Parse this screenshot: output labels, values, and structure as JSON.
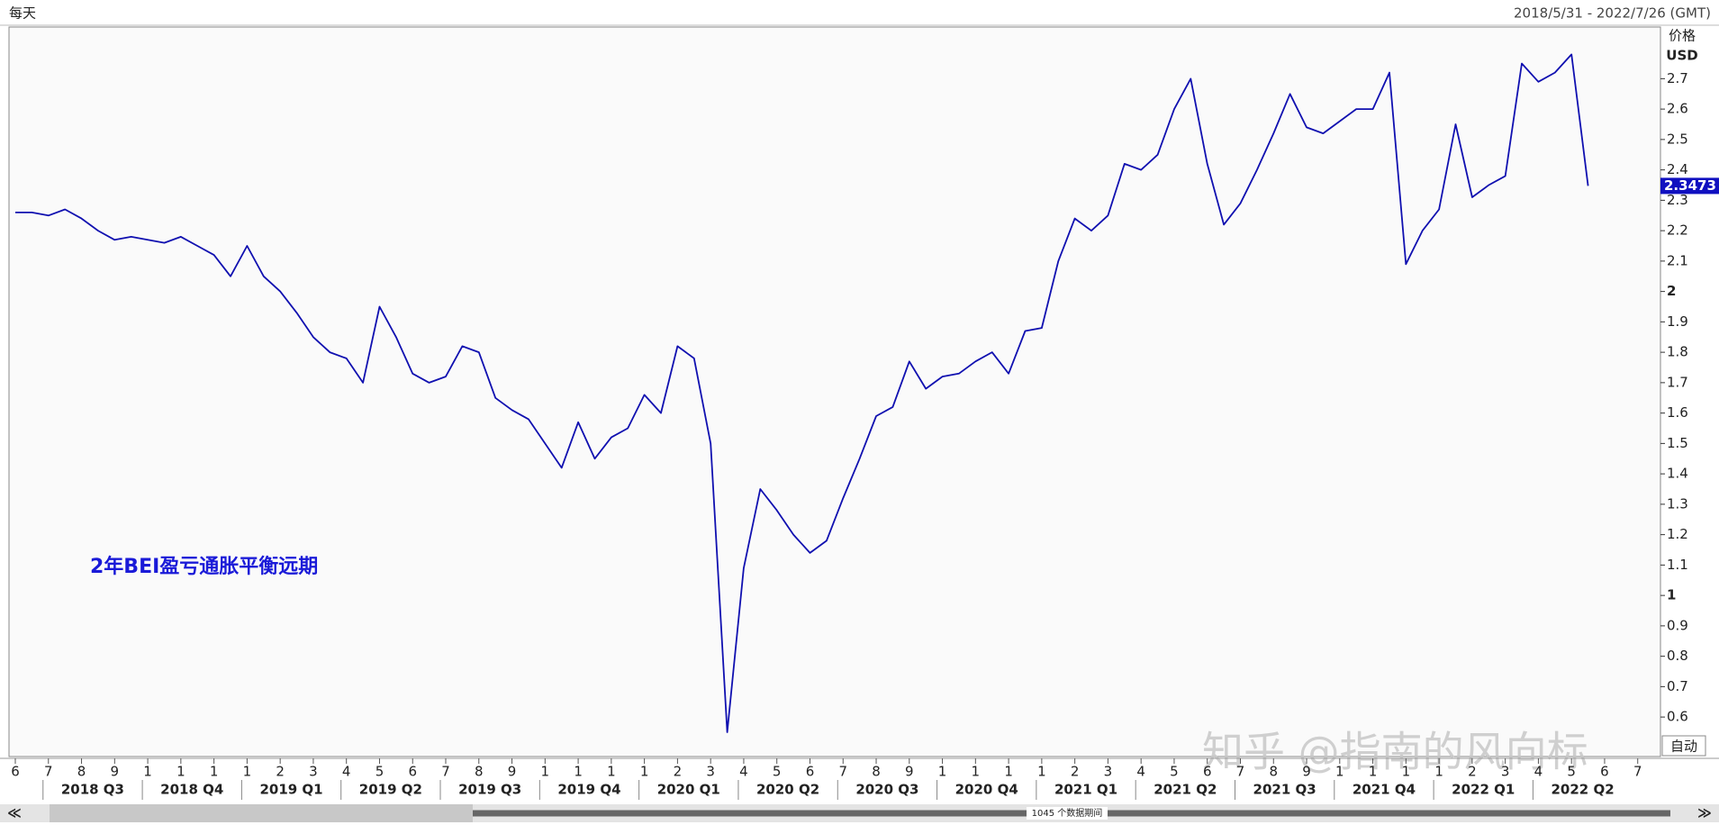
{
  "header": {
    "frequency": "每天",
    "range": "2018/5/31 - 2022/7/26 (GMT)"
  },
  "chart_data": {
    "type": "line",
    "annotation": "2年BEI盈亏通胀平衡远期",
    "y_axis_title": "价格",
    "y_axis_unit": "USD",
    "color": "#1010b0",
    "categories": [
      "6",
      null,
      "7",
      null,
      "8",
      null,
      "9",
      null,
      "1",
      null,
      "1",
      null,
      "1",
      null,
      "1",
      null,
      "2",
      null,
      "3",
      null,
      "4",
      null,
      "5",
      null,
      "6",
      null,
      "7",
      null,
      "8",
      null,
      "9",
      null,
      "1",
      null,
      "1",
      null,
      "1",
      null,
      "1",
      null,
      "2",
      null,
      "3",
      null,
      "4",
      null,
      "5",
      null,
      "6",
      null,
      "7",
      null,
      "8",
      null,
      "9",
      null,
      "1",
      null,
      "1",
      null,
      "1",
      null,
      "1",
      null,
      "2",
      null,
      "3",
      null,
      "4",
      null,
      "5",
      null,
      "6",
      null,
      "7",
      null,
      "8",
      null,
      "9",
      null,
      "1",
      null,
      "1",
      null,
      "1",
      null,
      "1",
      null,
      "2",
      null,
      "3",
      null,
      "4",
      null,
      "5",
      null,
      "6",
      null,
      "7"
    ],
    "values": [
      2.26,
      2.26,
      2.25,
      2.27,
      2.24,
      2.2,
      2.17,
      2.18,
      2.17,
      2.16,
      2.18,
      2.15,
      2.12,
      2.05,
      2.15,
      2.05,
      2.0,
      1.93,
      1.85,
      1.8,
      1.78,
      1.7,
      1.95,
      1.85,
      1.73,
      1.7,
      1.72,
      1.82,
      1.8,
      1.65,
      1.61,
      1.58,
      1.5,
      1.42,
      1.57,
      1.45,
      1.52,
      1.55,
      1.66,
      1.6,
      1.82,
      1.78,
      1.5,
      0.55,
      1.09,
      1.35,
      1.28,
      1.2,
      1.14,
      1.18,
      1.32,
      1.45,
      1.59,
      1.62,
      1.77,
      1.68,
      1.72,
      1.73,
      1.77,
      1.8,
      1.73,
      1.87,
      1.88,
      2.1,
      2.24,
      2.2,
      2.25,
      2.42,
      2.4,
      2.45,
      2.6,
      2.7,
      2.42,
      2.22,
      2.29,
      2.4,
      2.52,
      2.65,
      2.54,
      2.52,
      2.56,
      2.6,
      2.6,
      2.72,
      2.09,
      2.2,
      2.27,
      2.55,
      2.31,
      2.35,
      2.38,
      2.75,
      2.69,
      2.72,
      2.78,
      2.3473,
      null,
      null,
      null
    ],
    "quarters": [
      "2018 Q3",
      "2018 Q4",
      "2019 Q1",
      "2019 Q2",
      "2019 Q3",
      "2019 Q4",
      "2020 Q1",
      "2020 Q2",
      "2020 Q3",
      "2020 Q4",
      "2021 Q1",
      "2021 Q2",
      "2021 Q3",
      "2021 Q4",
      "2022 Q1",
      "2022 Q2"
    ],
    "ylim": [
      0.47,
      2.87
    ],
    "yticks": [
      0.6,
      0.7,
      0.8,
      0.9,
      1,
      1.1,
      1.2,
      1.3,
      1.4,
      1.5,
      1.6,
      1.7,
      1.8,
      1.9,
      2,
      2.1,
      2.2,
      2.3,
      2.4,
      2.5,
      2.6,
      2.7
    ],
    "last_value": 2.3473,
    "scale_mode": "自动"
  },
  "footer": {
    "periods": "1045 个数据期间",
    "watermark": "知乎 @指南的风向标"
  }
}
